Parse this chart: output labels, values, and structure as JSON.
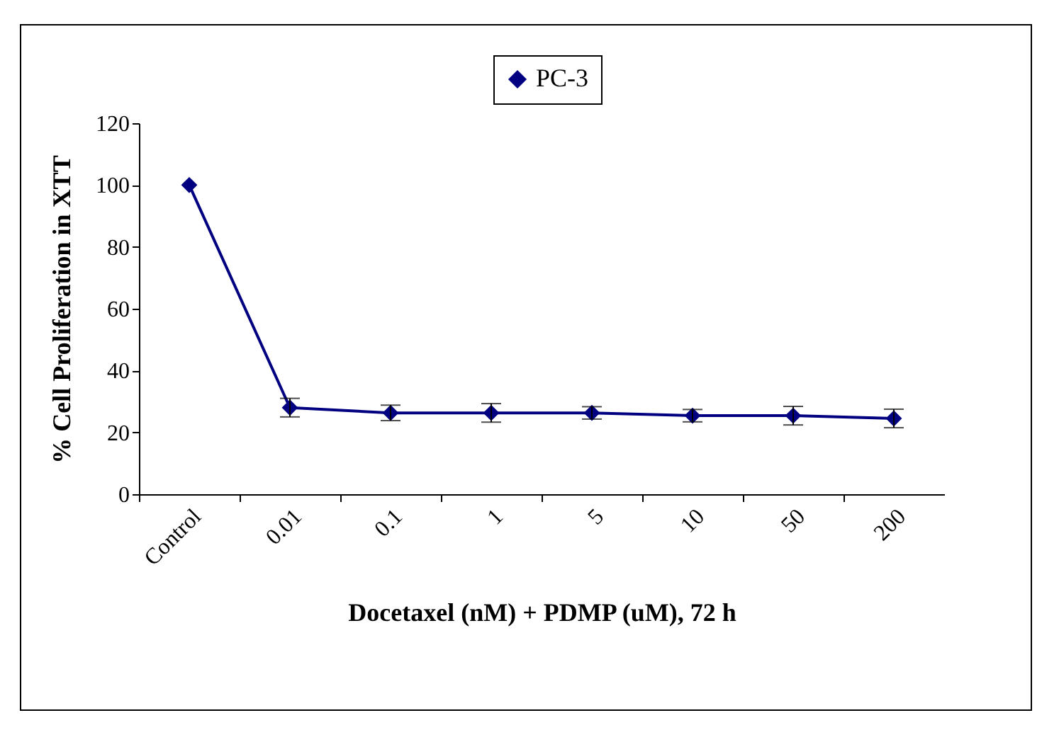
{
  "chart_data": {
    "type": "line",
    "xlabel": "Docetaxel (nM) + PDMP (uM), 72 h",
    "ylabel": "% Cell Proliferation in XTT",
    "categories": [
      "Control",
      "0.01",
      "0.1",
      "1",
      "5",
      "10",
      "50",
      "200"
    ],
    "series": [
      {
        "name": "PC-3",
        "color": "#000080",
        "values": [
          100,
          28,
          26.3,
          26.3,
          26.3,
          25.4,
          25.4,
          24.5
        ],
        "errors": [
          null,
          3,
          2.5,
          3,
          2,
          2,
          3,
          3
        ]
      }
    ],
    "ylim": [
      0,
      120
    ],
    "yticks": [
      0,
      20,
      40,
      60,
      80,
      100,
      120
    ],
    "grid": false,
    "legend": "top",
    "marker": "diamond",
    "line_style": "solid"
  }
}
